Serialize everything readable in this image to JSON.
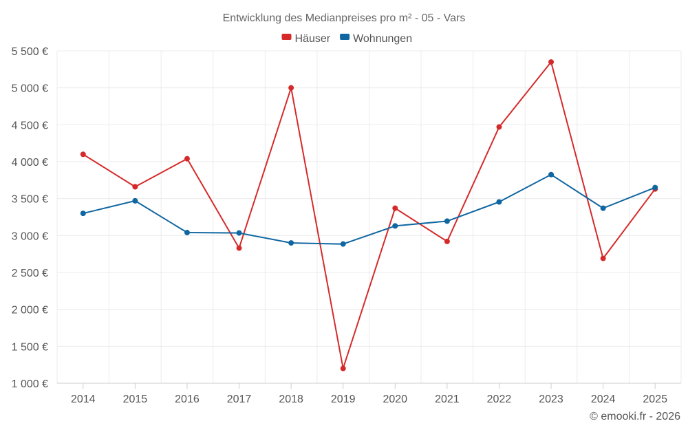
{
  "chart_data": {
    "type": "line",
    "title": "Entwicklung des Medianpreises pro m² - 05 - Vars",
    "categories": [
      "2014",
      "2015",
      "2016",
      "2017",
      "2018",
      "2019",
      "2020",
      "2021",
      "2022",
      "2023",
      "2024",
      "2025"
    ],
    "series": [
      {
        "name": "Häuser",
        "color": "#d62a2a",
        "values": [
          4100,
          3660,
          4040,
          2830,
          5000,
          1200,
          3370,
          2920,
          4470,
          5350,
          2690,
          3630
        ]
      },
      {
        "name": "Wohnungen",
        "color": "#0f66a1",
        "values": [
          3300,
          3470,
          3040,
          3035,
          2900,
          2885,
          3130,
          3195,
          3455,
          3825,
          3370,
          3650
        ]
      }
    ],
    "ylim": [
      1000,
      5500
    ],
    "yticks": [
      1000,
      1500,
      2000,
      2500,
      3000,
      3500,
      4000,
      4500,
      5000,
      5500
    ],
    "ytick_labels": [
      "1 000 €",
      "1 500 €",
      "2 000 €",
      "2 500 €",
      "3 000 €",
      "3 500 €",
      "4 000 €",
      "4 500 €",
      "5 000 €",
      "5 500 €"
    ],
    "xlabel": "",
    "ylabel": "",
    "grid": true,
    "legend_position": "top-center"
  },
  "credit": "© emooki.fr - 2026"
}
